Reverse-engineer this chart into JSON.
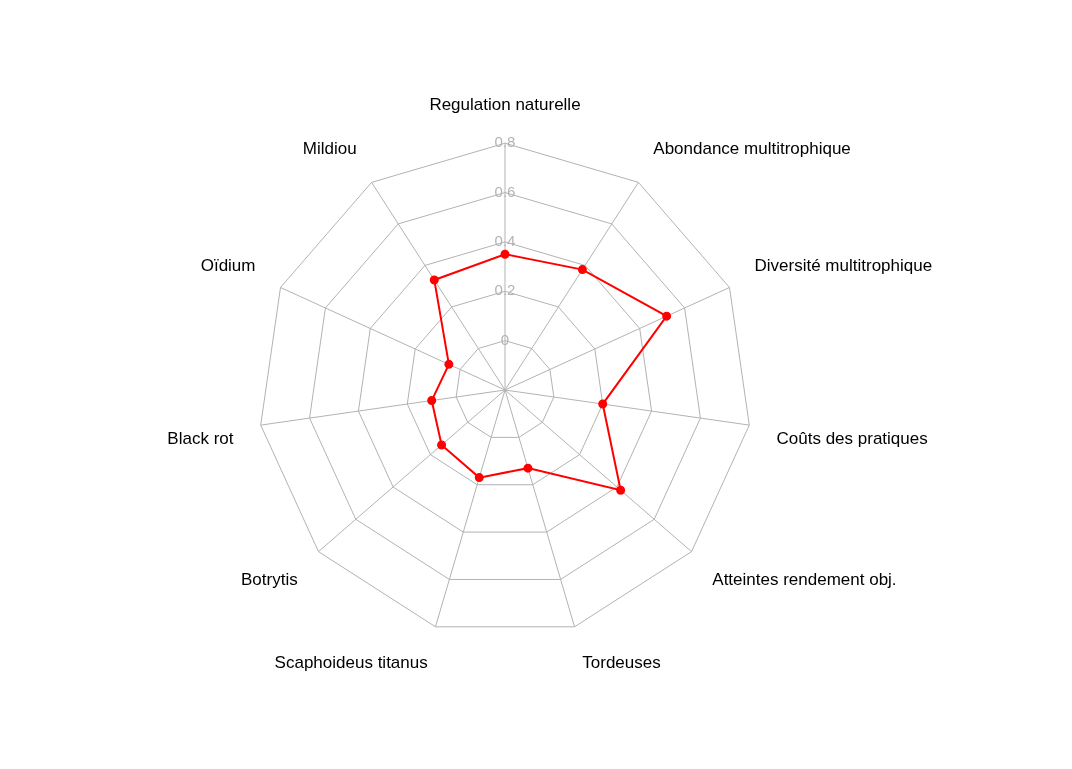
{
  "chart_data": {
    "type": "radar",
    "categories": [
      "Regulation naturelle",
      "Abondance multitrophique",
      "Diversité multitrophique",
      "Coûts des pratiques",
      "Atteintes rendement obj.",
      "Tordeuses",
      "Scaphoideus titanus",
      "Botrytis",
      "Black rot",
      "Oïdium",
      "Mildiou"
    ],
    "series": [
      {
        "color": "#ff0000",
        "values": [
          0.35,
          0.38,
          0.52,
          0.2,
          0.42,
          0.13,
          0.17,
          0.14,
          0.1,
          0.05,
          0.33
        ]
      }
    ],
    "ylim": [
      -0.2,
      0.8
    ],
    "yticks": [
      0,
      0.2,
      0.4,
      0.6,
      0.8
    ],
    "grid": true,
    "marker": "circle",
    "legend": false
  }
}
